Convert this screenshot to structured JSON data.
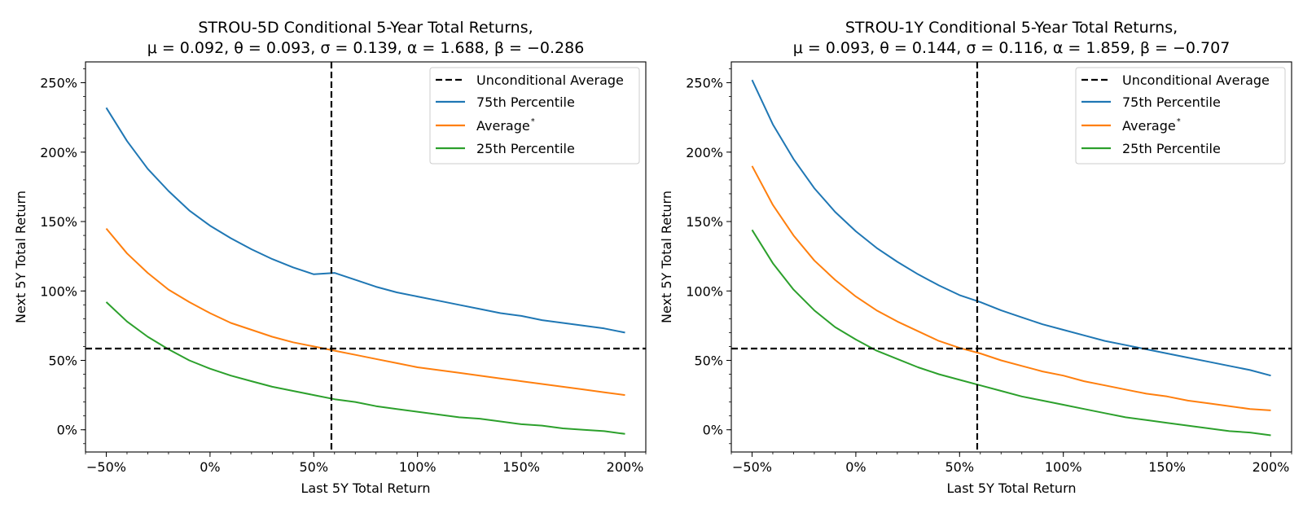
{
  "chart_data": [
    {
      "type": "line",
      "title": "STROU-5D Conditional 5-Year Total Returns,",
      "subtitle": "μ = 0.092, θ = 0.093, σ = 0.139, α = 1.688, β = −0.286",
      "xlabel": "Last 5Y Total Return",
      "ylabel": "Next 5Y Total Return",
      "xlim": [
        -0.6,
        2.1
      ],
      "ylim": [
        -0.16,
        2.65
      ],
      "xticks": [
        -0.5,
        0,
        0.5,
        1.0,
        1.5,
        2.0
      ],
      "xtick_labels": [
        "−50%",
        "0%",
        "50%",
        "100%",
        "150%",
        "200%"
      ],
      "yticks": [
        0,
        0.5,
        1.0,
        1.5,
        2.0,
        2.5
      ],
      "ytick_labels": [
        "0%",
        "50%",
        "100%",
        "150%",
        "200%",
        "250%"
      ],
      "grid": false,
      "legend_position": "top-right",
      "reference_lines": {
        "horizontal": {
          "y": 0.585,
          "name": "Unconditional Average",
          "color": "#000000"
        },
        "vertical": {
          "x": 0.585
        }
      },
      "x": [
        -0.5,
        -0.4,
        -0.3,
        -0.2,
        -0.1,
        0.0,
        0.1,
        0.2,
        0.3,
        0.4,
        0.5,
        0.6,
        0.7,
        0.8,
        0.9,
        1.0,
        1.1,
        1.2,
        1.3,
        1.4,
        1.5,
        1.6,
        1.7,
        1.8,
        1.9,
        2.0
      ],
      "series": [
        {
          "name": "75th Percentile",
          "color": "#1f77b4",
          "values": [
            2.32,
            2.08,
            1.88,
            1.72,
            1.58,
            1.47,
            1.38,
            1.3,
            1.23,
            1.17,
            1.12,
            1.13,
            1.08,
            1.03,
            0.99,
            0.96,
            0.93,
            0.9,
            0.87,
            0.84,
            0.82,
            0.79,
            0.77,
            0.75,
            0.73,
            0.7
          ]
        },
        {
          "name": "Average",
          "name_superscript": "*",
          "color": "#ff7f0e",
          "values": [
            1.45,
            1.27,
            1.13,
            1.01,
            0.92,
            0.84,
            0.77,
            0.72,
            0.67,
            0.63,
            0.6,
            0.57,
            0.54,
            0.51,
            0.48,
            0.45,
            0.43,
            0.41,
            0.39,
            0.37,
            0.35,
            0.33,
            0.31,
            0.29,
            0.27,
            0.25
          ]
        },
        {
          "name": "25th Percentile",
          "color": "#2ca02c",
          "values": [
            0.92,
            0.78,
            0.67,
            0.58,
            0.5,
            0.44,
            0.39,
            0.35,
            0.31,
            0.28,
            0.25,
            0.22,
            0.2,
            0.17,
            0.15,
            0.13,
            0.11,
            0.09,
            0.08,
            0.06,
            0.04,
            0.03,
            0.01,
            0.0,
            -0.01,
            -0.03
          ]
        }
      ]
    },
    {
      "type": "line",
      "title": "STROU-1Y Conditional 5-Year Total Returns,",
      "subtitle": "μ = 0.093, θ = 0.144, σ = 0.116, α = 1.859, β = −0.707",
      "xlabel": "Last 5Y Total Return",
      "ylabel": "Next 5Y Total Return",
      "xlim": [
        -0.6,
        2.1
      ],
      "ylim": [
        -0.16,
        2.65
      ],
      "xticks": [
        -0.5,
        0,
        0.5,
        1.0,
        1.5,
        2.0
      ],
      "xtick_labels": [
        "−50%",
        "0%",
        "50%",
        "100%",
        "150%",
        "200%"
      ],
      "yticks": [
        0,
        0.5,
        1.0,
        1.5,
        2.0,
        2.5
      ],
      "ytick_labels": [
        "0%",
        "50%",
        "100%",
        "150%",
        "200%",
        "250%"
      ],
      "grid": false,
      "legend_position": "top-right",
      "reference_lines": {
        "horizontal": {
          "y": 0.585,
          "name": "Unconditional Average",
          "color": "#000000"
        },
        "vertical": {
          "x": 0.585
        }
      },
      "x": [
        -0.5,
        -0.4,
        -0.3,
        -0.2,
        -0.1,
        0.0,
        0.1,
        0.2,
        0.3,
        0.4,
        0.5,
        0.6,
        0.7,
        0.8,
        0.9,
        1.0,
        1.1,
        1.2,
        1.3,
        1.4,
        1.5,
        1.6,
        1.7,
        1.8,
        1.9,
        2.0
      ],
      "series": [
        {
          "name": "75th Percentile",
          "color": "#1f77b4",
          "values": [
            2.52,
            2.2,
            1.95,
            1.74,
            1.57,
            1.43,
            1.31,
            1.21,
            1.12,
            1.04,
            0.97,
            0.92,
            0.86,
            0.81,
            0.76,
            0.72,
            0.68,
            0.64,
            0.61,
            0.58,
            0.55,
            0.52,
            0.49,
            0.46,
            0.43,
            0.39
          ]
        },
        {
          "name": "Average",
          "name_superscript": "*",
          "color": "#ff7f0e",
          "values": [
            1.9,
            1.62,
            1.4,
            1.22,
            1.08,
            0.96,
            0.86,
            0.78,
            0.71,
            0.64,
            0.59,
            0.55,
            0.5,
            0.46,
            0.42,
            0.39,
            0.35,
            0.32,
            0.29,
            0.26,
            0.24,
            0.21,
            0.19,
            0.17,
            0.15,
            0.14
          ]
        },
        {
          "name": "25th Percentile",
          "color": "#2ca02c",
          "values": [
            1.44,
            1.2,
            1.01,
            0.86,
            0.74,
            0.65,
            0.57,
            0.51,
            0.45,
            0.4,
            0.36,
            0.32,
            0.28,
            0.24,
            0.21,
            0.18,
            0.15,
            0.12,
            0.09,
            0.07,
            0.05,
            0.03,
            0.01,
            -0.01,
            -0.02,
            -0.04
          ]
        }
      ]
    }
  ]
}
